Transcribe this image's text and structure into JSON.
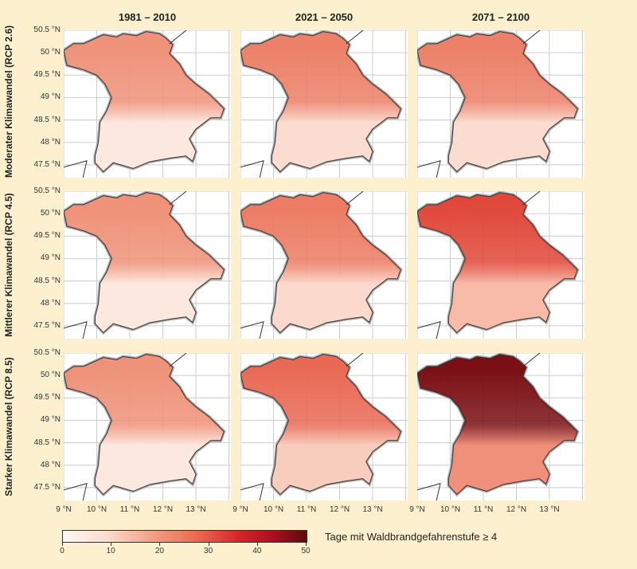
{
  "columns": [
    "1981 – 2010",
    "2021 – 2050",
    "2071 – 2100"
  ],
  "rows": [
    "Moderater Klimawandel (RCP 2.6)",
    "Mittlerer Klimawandel (RCP 4.5)",
    "Starker Klimawandel (RCP 8.5)"
  ],
  "lat_ticks": [
    "50.5 °N",
    "50 °N",
    "49.5 °N",
    "49 °N",
    "48.5 °N",
    "48 °N",
    "47.5 °N"
  ],
  "lon_ticks": [
    "9 °N",
    "10 °N",
    "11 °N",
    "12 °N",
    "13 °N"
  ],
  "colorbar": {
    "title": "Tage mit Waldbrandgefahrenstufe ≥ 4",
    "ticks": [
      "0",
      "10",
      "20",
      "30",
      "40",
      "50"
    ],
    "range": [
      0,
      50
    ]
  },
  "panel_fill": [
    [
      {
        "north": "#ef9279",
        "south": "#fde8e0"
      },
      {
        "north": "#ec8068",
        "south": "#fbdcd0"
      },
      {
        "north": "#ec8068",
        "south": "#fbdcd0"
      }
    ],
    [
      {
        "north": "#ef9279",
        "south": "#fde8e0"
      },
      {
        "north": "#ec7c64",
        "south": "#fbd9cc"
      },
      {
        "north": "#e0483a",
        "south": "#f7bba8"
      }
    ],
    [
      {
        "north": "#ef9279",
        "south": "#fde8e0"
      },
      {
        "north": "#e86a55",
        "south": "#f9cdbd"
      },
      {
        "north": "#7a1015",
        "south": "#f1907a"
      }
    ]
  ]
}
